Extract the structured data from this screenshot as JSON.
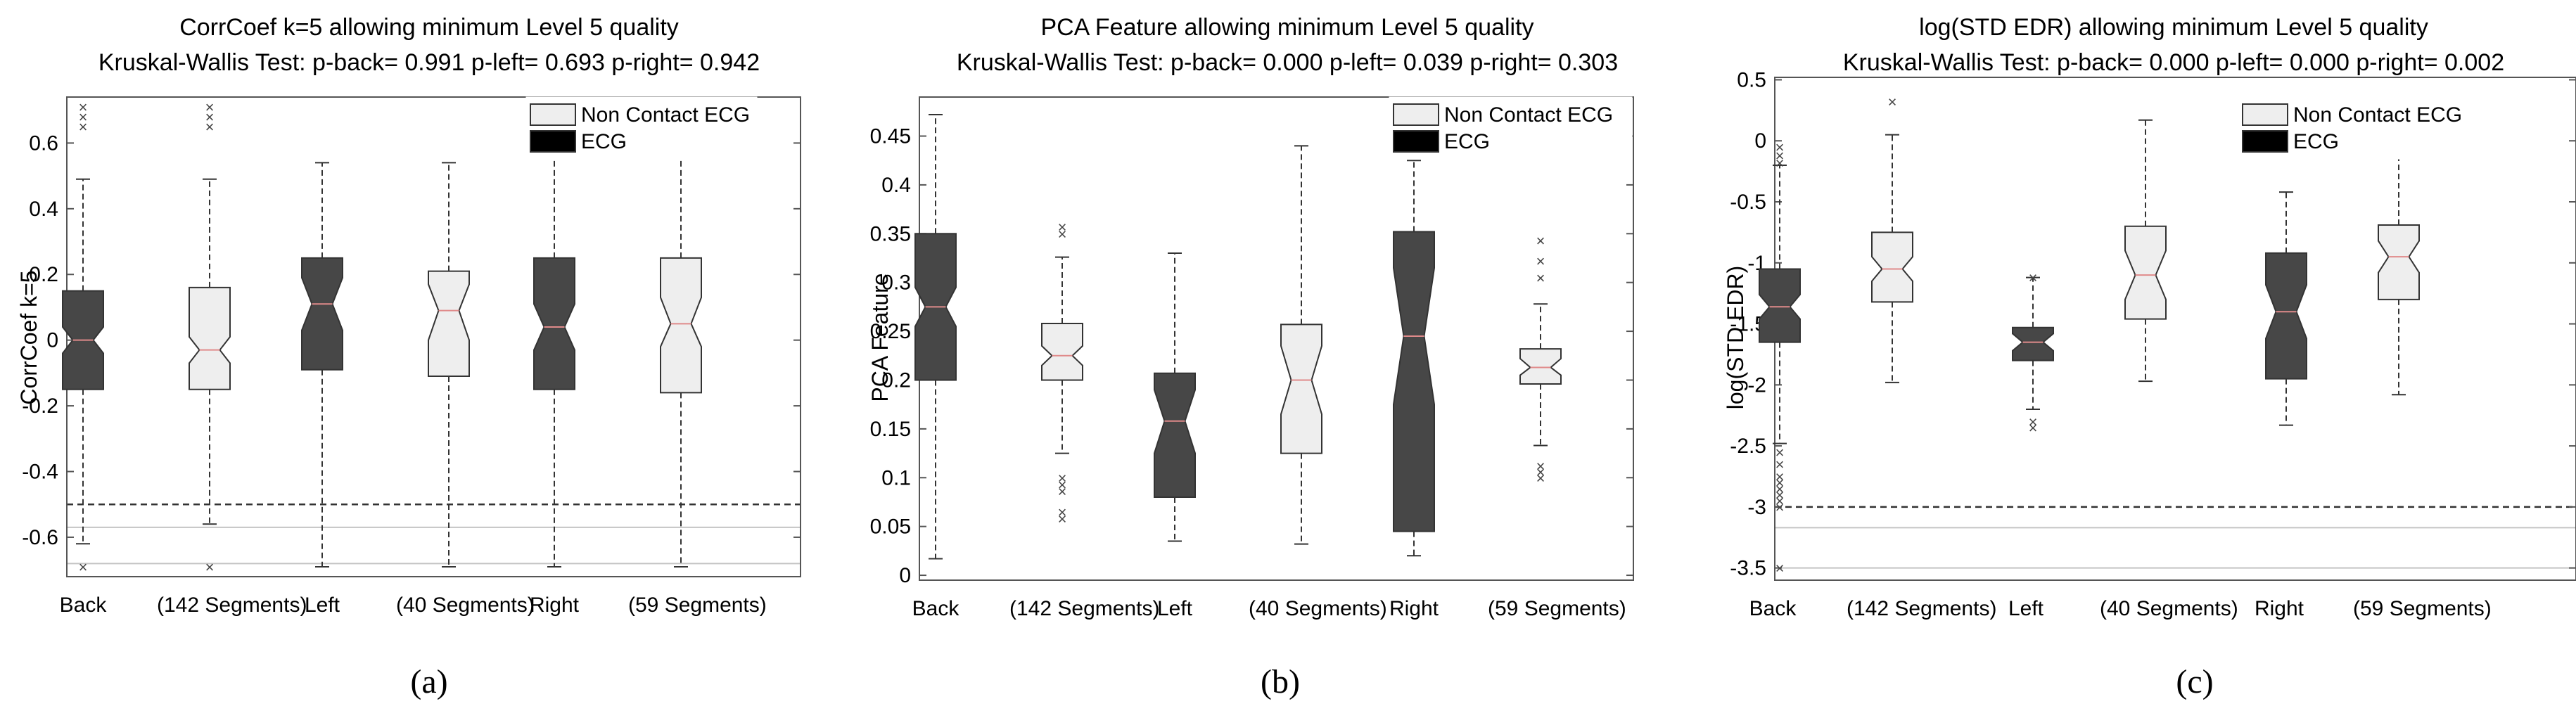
{
  "colors": {
    "ecg_fill": "#474747",
    "ncecg_fill": "#eeeeee",
    "median_line": "#e08a8a",
    "outlier": "#444444",
    "ref_dashed": "#333333",
    "ref_solid": "#c4c4c4"
  },
  "chart_data": [
    {
      "type": "boxplot",
      "panel_label": "(a)",
      "title": "CorrCoef k=5 allowing minimum Level 5 quality",
      "subtitle": "Kruskal-Wallis Test:  p-back= 0.991  p-left= 0.693  p-right= 0.942",
      "ylabel": "CorrCoef k=5",
      "ylim": [
        -0.72,
        0.74
      ],
      "yticks": [
        -0.6,
        -0.4,
        -0.2,
        0,
        0.2,
        0.4,
        0.6
      ],
      "yticklabels": [
        "-0.6",
        "-0.4",
        "-0.2",
        "0",
        "0.2",
        "0.4",
        "0.6"
      ],
      "legend": [
        {
          "label": "Non Contact ECG",
          "series": "ncecg"
        },
        {
          "label": "ECG",
          "series": "ecg"
        }
      ],
      "xgroups": [
        {
          "label": "Back",
          "segments": "(142 Segments)"
        },
        {
          "label": "Left",
          "segments": "(40 Segments)"
        },
        {
          "label": "Right",
          "segments": "(59 Segments)"
        }
      ],
      "boxes": [
        {
          "group": "Back",
          "series": "ecg",
          "q1": -0.15,
          "median": 0.0,
          "q3": 0.15,
          "notch_lo": -0.04,
          "notch_hi": 0.04,
          "whisker_lo": -0.62,
          "whisker_hi": 0.49,
          "outliers": [
            0.65,
            0.68,
            0.71,
            -0.69
          ]
        },
        {
          "group": "Back",
          "series": "ncecg",
          "q1": -0.15,
          "median": -0.03,
          "q3": 0.16,
          "notch_lo": -0.07,
          "notch_hi": 0.01,
          "whisker_lo": -0.56,
          "whisker_hi": 0.49,
          "outliers": [
            0.65,
            0.68,
            0.71,
            -0.69
          ]
        },
        {
          "group": "Left",
          "series": "ecg",
          "q1": -0.09,
          "median": 0.11,
          "q3": 0.25,
          "notch_lo": 0.03,
          "notch_hi": 0.19,
          "whisker_lo": -0.69,
          "whisker_hi": 0.54,
          "outliers": []
        },
        {
          "group": "Left",
          "series": "ncecg",
          "q1": -0.11,
          "median": 0.09,
          "q3": 0.21,
          "notch_lo": 0.0,
          "notch_hi": 0.17,
          "whisker_lo": -0.69,
          "whisker_hi": 0.54,
          "outliers": []
        },
        {
          "group": "Right",
          "series": "ecg",
          "q1": -0.15,
          "median": 0.04,
          "q3": 0.25,
          "notch_lo": -0.03,
          "notch_hi": 0.11,
          "whisker_lo": -0.69,
          "whisker_hi": 0.59,
          "outliers": []
        },
        {
          "group": "Right",
          "series": "ncecg",
          "q1": -0.16,
          "median": 0.05,
          "q3": 0.25,
          "notch_lo": -0.02,
          "notch_hi": 0.13,
          "whisker_lo": -0.69,
          "whisker_hi": 0.59,
          "outliers": []
        }
      ],
      "ref_lines": [
        {
          "y": -0.5,
          "style": "dashed"
        },
        {
          "y": -0.57,
          "style": "solid"
        },
        {
          "y": -0.68,
          "style": "solid"
        }
      ]
    },
    {
      "type": "boxplot",
      "panel_label": "(b)",
      "title": "PCA Feature allowing minimum Level 5 quality",
      "subtitle": "Kruskal-Wallis Test:  p-back= 0.000  p-left= 0.039  p-right= 0.303",
      "ylabel": "PCA Feature",
      "ylim": [
        -0.005,
        0.49
      ],
      "yticks": [
        0,
        0.05,
        0.1,
        0.15,
        0.2,
        0.25,
        0.3,
        0.35,
        0.4,
        0.45
      ],
      "yticklabels": [
        "0",
        "0.05",
        "0.1",
        "0.15",
        "0.2",
        "0.25",
        "0.3",
        "0.35",
        "0.4",
        "0.45"
      ],
      "legend": [
        {
          "label": "Non Contact ECG",
          "series": "ncecg"
        },
        {
          "label": "ECG",
          "series": "ecg"
        }
      ],
      "xgroups": [
        {
          "label": "Back",
          "segments": "(142 Segments)"
        },
        {
          "label": "Left",
          "segments": "(40 Segments)"
        },
        {
          "label": "Right",
          "segments": "(59 Segments)"
        }
      ],
      "boxes": [
        {
          "group": "Back",
          "series": "ecg",
          "q1": 0.2,
          "median": 0.275,
          "q3": 0.35,
          "notch_lo": 0.255,
          "notch_hi": 0.295,
          "whisker_lo": 0.017,
          "whisker_hi": 0.472,
          "outliers": []
        },
        {
          "group": "Back",
          "series": "ncecg",
          "q1": 0.2,
          "median": 0.225,
          "q3": 0.258,
          "notch_lo": 0.215,
          "notch_hi": 0.235,
          "whisker_lo": 0.125,
          "whisker_hi": 0.326,
          "outliers": [
            0.35,
            0.357,
            0.1,
            0.093,
            0.086,
            0.065,
            0.058
          ]
        },
        {
          "group": "Left",
          "series": "ecg",
          "q1": 0.08,
          "median": 0.158,
          "q3": 0.207,
          "notch_lo": 0.125,
          "notch_hi": 0.19,
          "whisker_lo": 0.035,
          "whisker_hi": 0.33,
          "outliers": []
        },
        {
          "group": "Left",
          "series": "ncecg",
          "q1": 0.125,
          "median": 0.2,
          "q3": 0.257,
          "notch_lo": 0.165,
          "notch_hi": 0.235,
          "whisker_lo": 0.032,
          "whisker_hi": 0.44,
          "outliers": []
        },
        {
          "group": "Right",
          "series": "ecg",
          "q1": 0.045,
          "median": 0.245,
          "q3": 0.352,
          "notch_lo": 0.175,
          "notch_hi": 0.315,
          "whisker_lo": 0.02,
          "whisker_hi": 0.425,
          "outliers": []
        },
        {
          "group": "Right",
          "series": "ncecg",
          "q1": 0.196,
          "median": 0.213,
          "q3": 0.232,
          "notch_lo": 0.205,
          "notch_hi": 0.222,
          "whisker_lo": 0.133,
          "whisker_hi": 0.278,
          "outliers": [
            0.343,
            0.322,
            0.305,
            0.112,
            0.106,
            0.1
          ]
        }
      ],
      "ref_lines": []
    },
    {
      "type": "boxplot",
      "panel_label": "(c)",
      "title": "log(STD EDR) allowing minimum Level 5 quality",
      "subtitle": "Kruskal-Wallis Test:  p-back= 0.000  p-left= 0.000  p-right= 0.002",
      "ylabel": "log(STD EDR)",
      "ylim": [
        -3.6,
        0.52
      ],
      "yticks": [
        -3.5,
        -3,
        -2.5,
        -2,
        -1.5,
        -1,
        -0.5,
        0,
        0.5
      ],
      "yticklabels": [
        "-3.5",
        "-3",
        "-2.5",
        "-2",
        "-1.5",
        "-1",
        "-0.5",
        "0",
        "0.5"
      ],
      "legend": [
        {
          "label": "Non Contact ECG",
          "series": "ncecg"
        },
        {
          "label": "ECG",
          "series": "ecg"
        }
      ],
      "xgroups": [
        {
          "label": "Back",
          "segments": "(142 Segments)"
        },
        {
          "label": "Left",
          "segments": "(40 Segments)"
        },
        {
          "label": "Right",
          "segments": "(59 Segments)"
        }
      ],
      "boxes": [
        {
          "group": "Back",
          "series": "ecg",
          "q1": -1.65,
          "median": -1.36,
          "q3": -1.05,
          "notch_lo": -1.46,
          "notch_hi": -1.26,
          "whisker_lo": -2.48,
          "whisker_hi": -0.2,
          "outliers": [
            -0.05,
            -0.12,
            -0.18,
            -2.55,
            -2.65,
            -2.75,
            -2.8,
            -2.85,
            -2.9,
            -2.95,
            -3.0,
            -3.5
          ]
        },
        {
          "group": "Back",
          "series": "ncecg",
          "q1": -1.32,
          "median": -1.05,
          "q3": -0.75,
          "notch_lo": -1.15,
          "notch_hi": -0.95,
          "whisker_lo": -1.98,
          "whisker_hi": 0.05,
          "outliers": [
            0.32
          ]
        },
        {
          "group": "Left",
          "series": "ecg",
          "q1": -1.8,
          "median": -1.65,
          "q3": -1.53,
          "notch_lo": -1.72,
          "notch_hi": -1.58,
          "whisker_lo": -2.2,
          "whisker_hi": -1.12,
          "outliers": [
            -2.3,
            -2.35,
            -1.12
          ]
        },
        {
          "group": "Left",
          "series": "ncecg",
          "q1": -1.46,
          "median": -1.1,
          "q3": -0.7,
          "notch_lo": -1.3,
          "notch_hi": -0.9,
          "whisker_lo": -1.97,
          "whisker_hi": 0.17,
          "outliers": []
        },
        {
          "group": "Right",
          "series": "ecg",
          "q1": -1.95,
          "median": -1.4,
          "q3": -0.92,
          "notch_lo": -1.62,
          "notch_hi": -1.18,
          "whisker_lo": -2.33,
          "whisker_hi": -0.42,
          "outliers": []
        },
        {
          "group": "Right",
          "series": "ncecg",
          "q1": -1.3,
          "median": -0.95,
          "q3": -0.69,
          "notch_lo": -1.08,
          "notch_hi": -0.82,
          "whisker_lo": -2.08,
          "whisker_hi": -0.1,
          "outliers": []
        }
      ],
      "ref_lines": [
        {
          "y": -3.0,
          "style": "dashed"
        },
        {
          "y": -3.17,
          "style": "solid"
        },
        {
          "y": -3.5,
          "style": "solid"
        }
      ]
    }
  ]
}
